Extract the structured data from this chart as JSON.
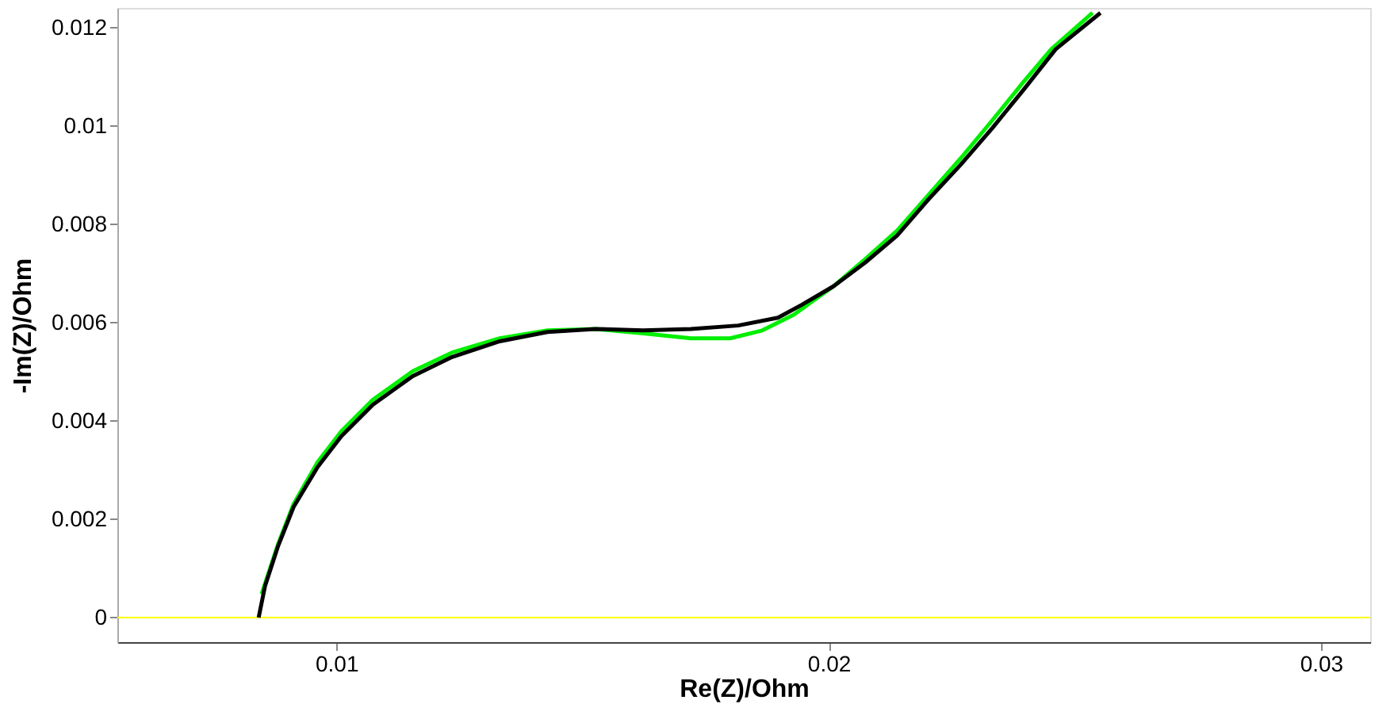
{
  "chart_data": {
    "type": "line",
    "xlabel": "Re(Z)/Ohm",
    "ylabel": "-Im(Z)/Ohm",
    "xlim": [
      0.00555,
      0.031
    ],
    "ylim": [
      -0.0005,
      0.0124
    ],
    "xticks": [
      0.01,
      0.02,
      0.03
    ],
    "yticks": [
      0,
      0.002,
      0.004,
      0.006,
      0.008,
      0.01,
      0.012
    ],
    "grid": false,
    "legend": false,
    "marker": "none",
    "line_style": "solid",
    "ref_lines": [
      {
        "axis": "y",
        "value": 0,
        "color": "#ffff00"
      }
    ],
    "series": [
      {
        "color": "#00ee00",
        "x": [
          0.00848,
          0.00881,
          0.00913,
          0.00961,
          0.0101,
          0.01074,
          0.01155,
          0.01235,
          0.01332,
          0.01429,
          0.01526,
          0.01623,
          0.0172,
          0.018,
          0.01865,
          0.01929,
          0.0201,
          0.02074,
          0.02139,
          0.02203,
          0.02268,
          0.02332,
          0.02397,
          0.02452,
          0.02536
        ],
        "values": [
          0.00048,
          0.00148,
          0.00231,
          0.00315,
          0.00379,
          0.00443,
          0.00501,
          0.00539,
          0.00568,
          0.00584,
          0.00587,
          0.00578,
          0.00568,
          0.00568,
          0.00584,
          0.00616,
          0.00674,
          0.00729,
          0.00787,
          0.0086,
          0.00934,
          0.01011,
          0.01091,
          0.01156,
          0.0123
        ]
      },
      {
        "color": "#000000",
        "x": [
          0.00842,
          0.00855,
          0.00881,
          0.00913,
          0.00961,
          0.0101,
          0.01074,
          0.01155,
          0.01235,
          0.01332,
          0.01429,
          0.01526,
          0.01623,
          0.0172,
          0.01816,
          0.01897,
          0.01945,
          0.0201,
          0.02074,
          0.02139,
          0.02203,
          0.02268,
          0.02332,
          0.02397,
          0.02461,
          0.02552
        ],
        "values": [
          0,
          0.00064,
          0.00144,
          0.00225,
          0.00305,
          0.00369,
          0.00433,
          0.00491,
          0.0053,
          0.00562,
          0.00581,
          0.00587,
          0.00584,
          0.00587,
          0.00594,
          0.0061,
          0.00636,
          0.00674,
          0.00722,
          0.00777,
          0.00851,
          0.00921,
          0.00995,
          0.01075,
          0.01156,
          0.0123
        ]
      }
    ]
  }
}
